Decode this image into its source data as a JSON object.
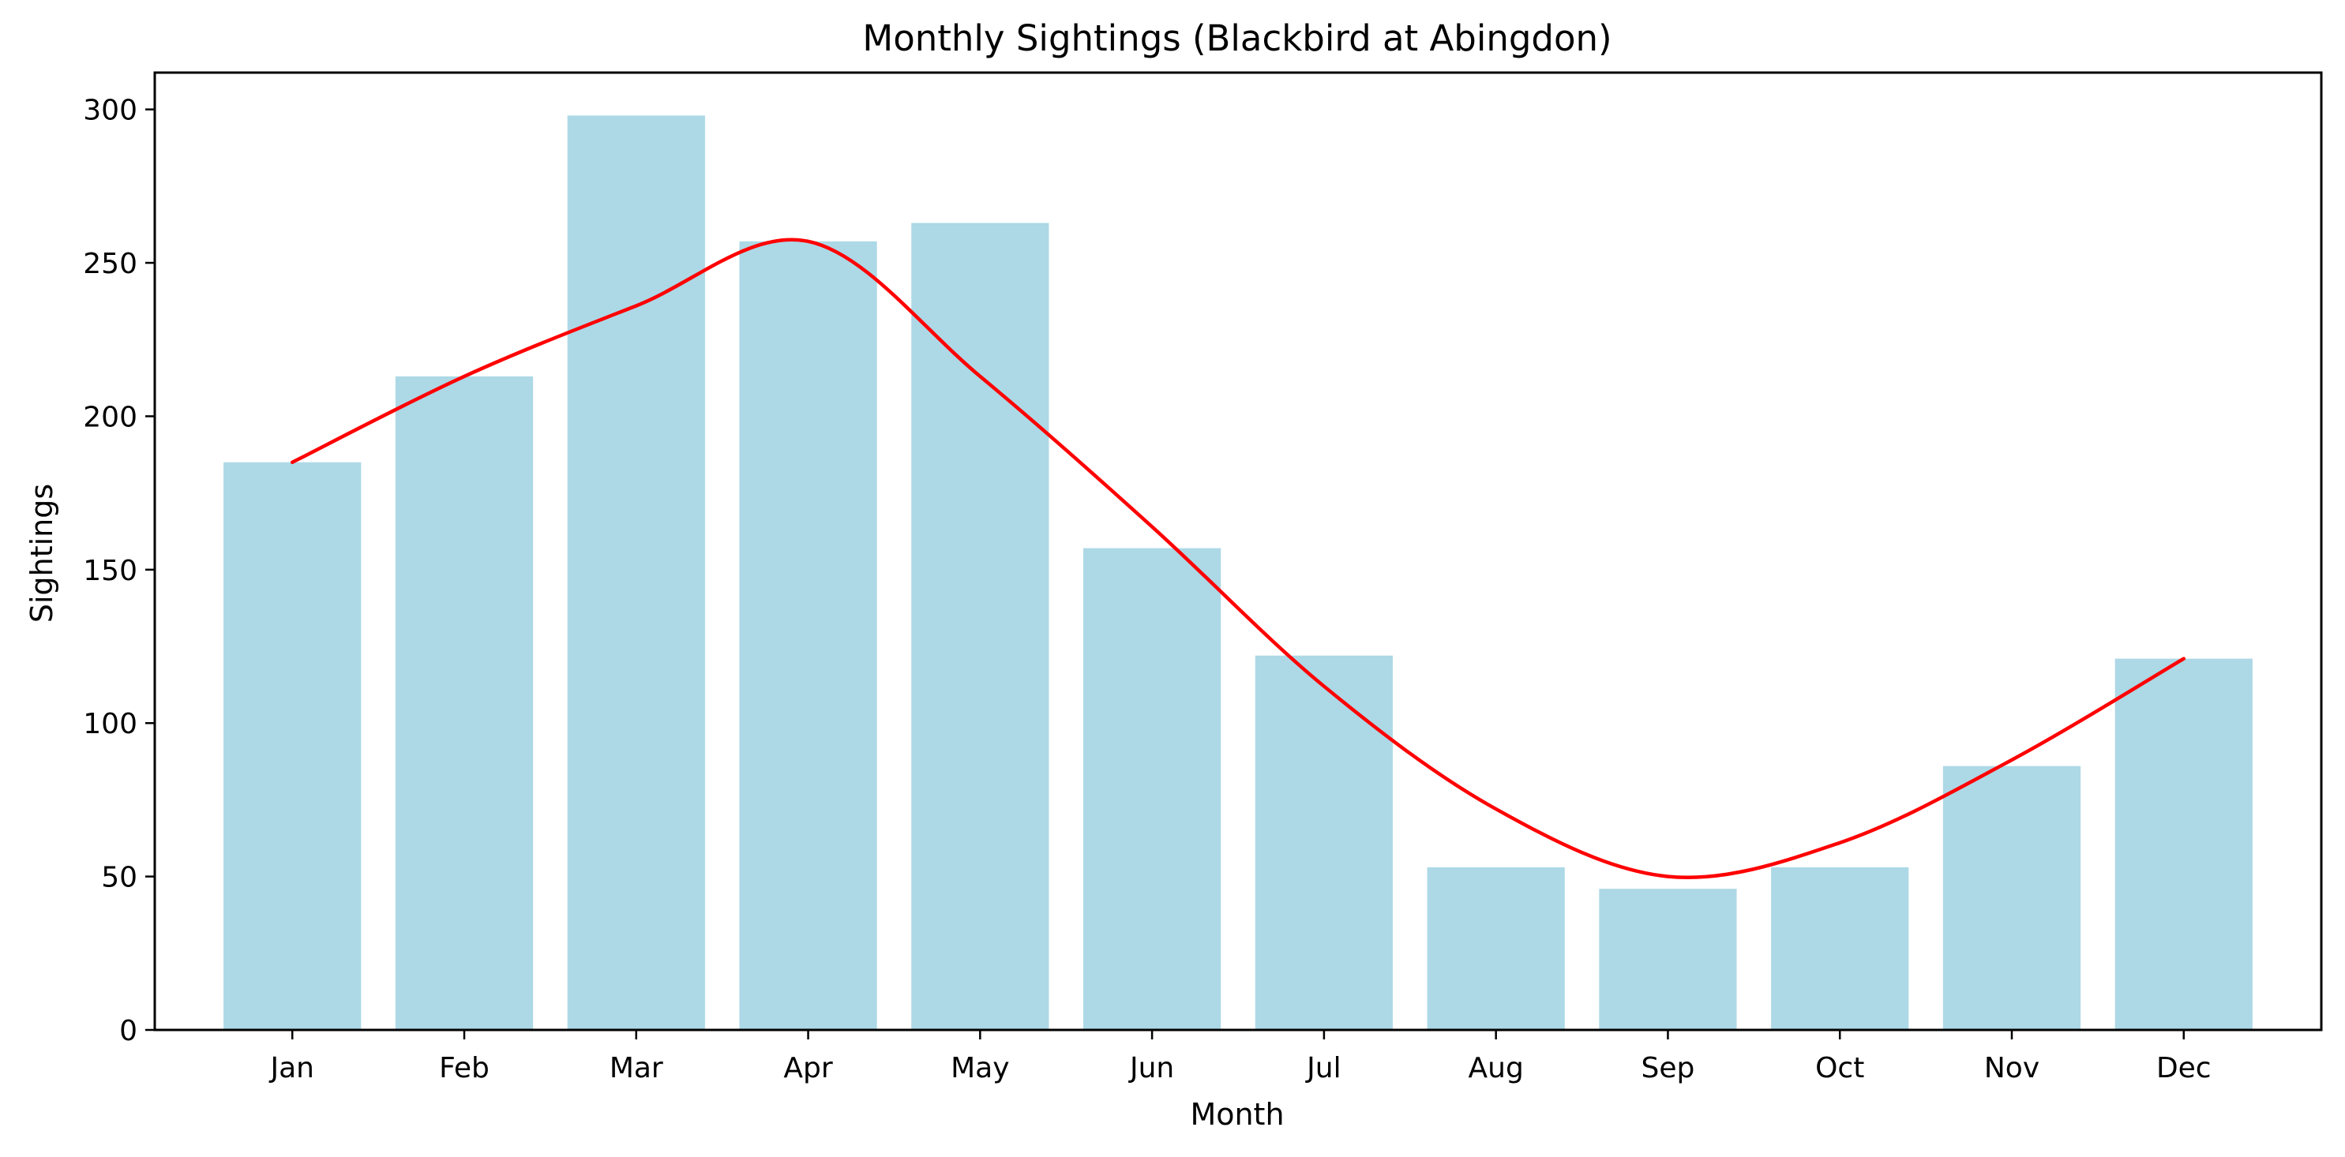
{
  "chart_data": {
    "type": "bar",
    "title": "Monthly Sightings (Blackbird at Abingdon)",
    "xlabel": "Month",
    "ylabel": "Sightings",
    "categories": [
      "Jan",
      "Feb",
      "Mar",
      "Apr",
      "May",
      "Jun",
      "Jul",
      "Aug",
      "Sep",
      "Oct",
      "Nov",
      "Dec"
    ],
    "series": [
      {
        "type": "bar",
        "values": [
          185,
          213,
          298,
          257,
          263,
          157,
          122,
          53,
          46,
          53,
          86,
          121
        ]
      },
      {
        "type": "line",
        "values": [
          185,
          213,
          236,
          257,
          213,
          164,
          112,
          72,
          50,
          61,
          88,
          121
        ]
      }
    ],
    "ylim": [
      0,
      312
    ],
    "yticks": [
      0,
      50,
      100,
      150,
      200,
      250,
      300
    ],
    "grid": false,
    "legend": "none",
    "colors": {
      "bar": "#add8e6",
      "line": "#ff0000",
      "axis": "#000000"
    }
  }
}
